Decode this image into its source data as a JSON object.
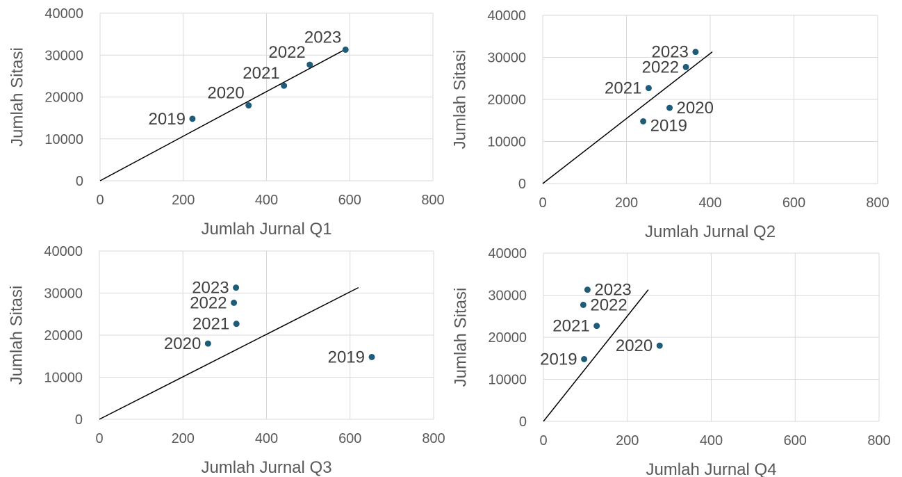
{
  "chart_data": [
    {
      "type": "scatter",
      "xlabel": "Jumlah Jurnal Q1",
      "ylabel": "Jumlah Sitasi",
      "xlim": [
        0,
        800
      ],
      "ylim": [
        0,
        40000
      ],
      "xticks": [
        "0",
        "200",
        "400",
        "600",
        "800"
      ],
      "yticks": [
        "0",
        "10000",
        "20000",
        "30000",
        "40000"
      ],
      "grid": true,
      "marker_color": "#1f5c7a",
      "points": [
        {
          "label": "2019",
          "x": 222,
          "y": 14800,
          "label_pos": "left"
        },
        {
          "label": "2020",
          "x": 357,
          "y": 18000,
          "label_pos": "top-left"
        },
        {
          "label": "2021",
          "x": 442,
          "y": 22700,
          "label_pos": "top-left"
        },
        {
          "label": "2022",
          "x": 504,
          "y": 27700,
          "label_pos": "top-left"
        },
        {
          "label": "2023",
          "x": 590,
          "y": 31300,
          "label_pos": "top-left"
        }
      ],
      "trendline": {
        "x0": 0,
        "y0": 0,
        "x1": 588,
        "y1": 31300
      }
    },
    {
      "type": "scatter",
      "xlabel": "Jumlah Jurnal Q2",
      "ylabel": "Jumlah Sitasi",
      "xlim": [
        0,
        800
      ],
      "ylim": [
        0,
        40000
      ],
      "xticks": [
        "0",
        "200",
        "400",
        "600",
        "800"
      ],
      "yticks": [
        "0",
        "10000",
        "20000",
        "30000",
        "40000"
      ],
      "grid": true,
      "marker_color": "#1f5c7a",
      "points": [
        {
          "label": "2019",
          "x": 240,
          "y": 14800,
          "label_pos": "bottom-right"
        },
        {
          "label": "2020",
          "x": 303,
          "y": 18000,
          "label_pos": "right"
        },
        {
          "label": "2021",
          "x": 253,
          "y": 22700,
          "label_pos": "left"
        },
        {
          "label": "2022",
          "x": 342,
          "y": 27700,
          "label_pos": "left"
        },
        {
          "label": "2023",
          "x": 365,
          "y": 31300,
          "label_pos": "left"
        }
      ],
      "trendline": {
        "x0": 0,
        "y0": 0,
        "x1": 405,
        "y1": 31300
      }
    },
    {
      "type": "scatter",
      "xlabel": "Jumlah Jurnal Q3",
      "ylabel": "Jumlah Sitasi",
      "xlim": [
        0,
        800
      ],
      "ylim": [
        0,
        40000
      ],
      "xticks": [
        "0",
        "200",
        "400",
        "600",
        "800"
      ],
      "yticks": [
        "0",
        "10000",
        "20000",
        "30000",
        "40000"
      ],
      "grid": true,
      "marker_color": "#1f5c7a",
      "points": [
        {
          "label": "2019",
          "x": 652,
          "y": 14800,
          "label_pos": "left"
        },
        {
          "label": "2020",
          "x": 260,
          "y": 18000,
          "label_pos": "left"
        },
        {
          "label": "2021",
          "x": 328,
          "y": 22700,
          "label_pos": "left"
        },
        {
          "label": "2022",
          "x": 322,
          "y": 27700,
          "label_pos": "left"
        },
        {
          "label": "2023",
          "x": 327,
          "y": 31300,
          "label_pos": "left"
        }
      ],
      "trendline": {
        "x0": 0,
        "y0": 0,
        "x1": 620,
        "y1": 31300
      }
    },
    {
      "type": "scatter",
      "xlabel": "Jumlah Jurnal Q4",
      "ylabel": "Jumlah Sitasi",
      "xlim": [
        0,
        800
      ],
      "ylim": [
        0,
        40000
      ],
      "xticks": [
        "0",
        "200",
        "400",
        "600",
        "800"
      ],
      "yticks": [
        "0",
        "10000",
        "20000",
        "30000",
        "40000"
      ],
      "grid": true,
      "marker_color": "#1f5c7a",
      "points": [
        {
          "label": "2019",
          "x": 97,
          "y": 14800,
          "label_pos": "left"
        },
        {
          "label": "2020",
          "x": 277,
          "y": 18000,
          "label_pos": "left"
        },
        {
          "label": "2021",
          "x": 127,
          "y": 22700,
          "label_pos": "left"
        },
        {
          "label": "2022",
          "x": 95,
          "y": 27700,
          "label_pos": "right"
        },
        {
          "label": "2023",
          "x": 105,
          "y": 31300,
          "label_pos": "right"
        }
      ],
      "trendline": {
        "x0": 0,
        "y0": 0,
        "x1": 250,
        "y1": 31300
      }
    }
  ]
}
